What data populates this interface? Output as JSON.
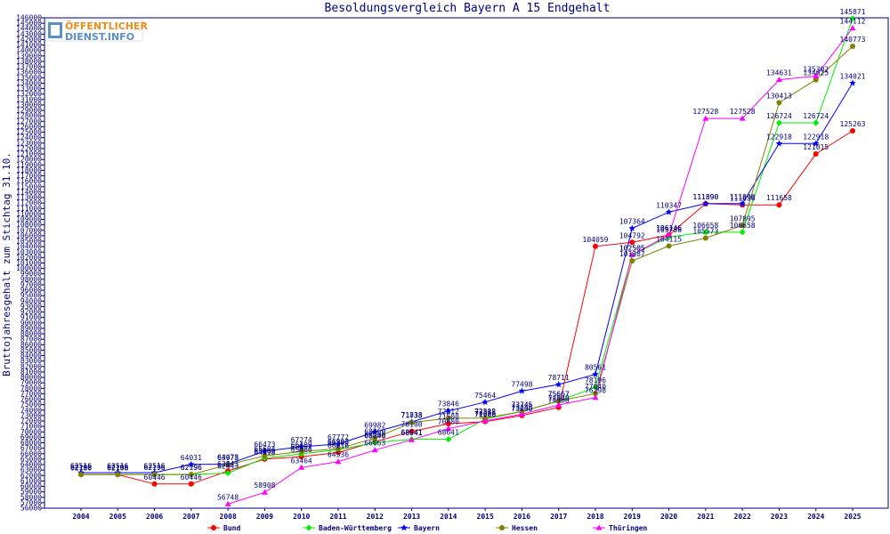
{
  "logo": {
    "line1": "ÖFFENTLICHER",
    "line2": "DIENST.INFO"
  },
  "colors": {
    "axis": "#000080",
    "Bund": "#ff0000",
    "Baden-Württemberg": "#00ee00",
    "Bayern": "#0000ff",
    "Hessen": "#808000",
    "Thüringen": "#ff00ff"
  },
  "chart_data": {
    "type": "line",
    "title": "Besoldungsvergleich Bayern A 15 Endgehalt",
    "xlabel": "",
    "ylabel": "Bruttojahresgehalt zum Stichtag 31.10.",
    "categories": [
      "2004",
      "2005",
      "2006",
      "2007",
      "2008",
      "2009",
      "2010",
      "2011",
      "2012",
      "2013",
      "2014",
      "2015",
      "2016",
      "2017",
      "2018",
      "2019",
      "2020",
      "2021",
      "2022",
      "2023",
      "2024",
      "2025"
    ],
    "ylim": [
      56000,
      146000
    ],
    "ytick_step": 1000,
    "grid": false,
    "legend_position": "bottom",
    "series": [
      {
        "name": "Bund",
        "marker": "circle",
        "values": [
          62166,
          62166,
          60446,
          60446,
          62843,
          64998,
          65460,
          66216,
          68200,
          70100,
          71500,
          71900,
          73000,
          74500,
          104059,
          104792,
          106146,
          111890,
          111656,
          111658,
          121015,
          125263
        ]
      },
      {
        "name": "Baden-Württemberg",
        "marker": "diamond",
        "values": [
          62196,
          62196,
          62196,
          62196,
          62443,
          65200,
          65957,
          66709,
          68046,
          68641,
          68641,
          72385,
          73745,
          75667,
          78196,
          102505,
          105786,
          106658,
          106658,
          126724,
          126724,
          145871
        ]
      },
      {
        "name": "Bayern",
        "marker": "star",
        "values": [
          62516,
          62516,
          62516,
          64031,
          64073,
          66473,
          67274,
          67772,
          69982,
          71838,
          73846,
          75464,
          77498,
          78711,
          80561,
          107364,
          110347,
          111890,
          111890,
          122918,
          122918,
          134021
        ]
      },
      {
        "name": "Hessen",
        "marker": "circle",
        "values": [
          62196,
          62196,
          62196,
          62196,
          63978,
          65604,
          66409,
          66903,
          68860,
          71733,
          72512,
          72512,
          73745,
          75667,
          77040,
          101387,
          104115,
          105573,
          107895,
          130413,
          134625,
          140773
        ]
      },
      {
        "name": "Thüringen",
        "marker": "triangle",
        "values": [
          null,
          null,
          null,
          null,
          56748,
          58908,
          63464,
          64536,
          66663,
          68541,
          70600,
          72029,
          73245,
          74940,
          76298,
          102505,
          106146,
          127528,
          127528,
          134631,
          135302,
          144112
        ]
      }
    ]
  }
}
